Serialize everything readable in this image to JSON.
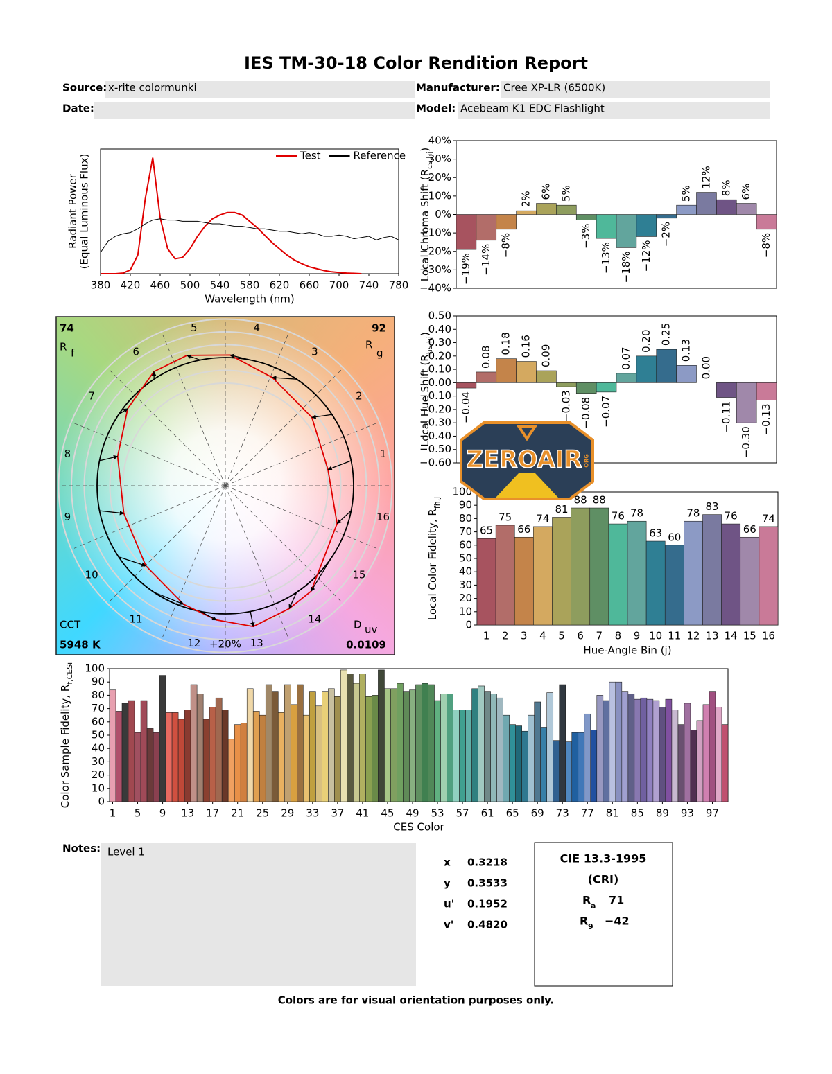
{
  "header": {
    "title": "IES TM-30-18 Color Rendition Report",
    "fields": [
      {
        "label": "Source:",
        "value": "x-rite colormunki"
      },
      {
        "label": "Manufacturer:",
        "value": "Cree XP-LR (6500K)"
      },
      {
        "label": "Date:"
      },
      {
        "label": "Model:",
        "value": "Acebeam K1 EDC Flashlight"
      }
    ]
  },
  "chart_data": [
    {
      "type": "line",
      "xlabel": "Wavelength (nm)",
      "ylabel": "Radiant Power",
      "ylabel_note": "(Equal Luminous Flux)",
      "x": [
        380,
        390,
        400,
        410,
        420,
        430,
        440,
        450,
        460,
        470,
        480,
        490,
        500,
        510,
        520,
        530,
        540,
        550,
        560,
        570,
        580,
        590,
        600,
        610,
        620,
        630,
        640,
        650,
        660,
        670,
        680,
        690,
        700,
        710,
        720,
        730,
        740,
        750,
        760,
        770,
        780
      ],
      "series": [
        {
          "name": "Test",
          "color": "#e00000",
          "values": [
            0,
            0,
            0,
            0.005,
            0.03,
            0.15,
            0.6,
            0.93,
            0.45,
            0.2,
            0.12,
            0.13,
            0.2,
            0.3,
            0.38,
            0.44,
            0.47,
            0.49,
            0.49,
            0.47,
            0.42,
            0.37,
            0.31,
            0.25,
            0.2,
            0.15,
            0.11,
            0.08,
            0.055,
            0.04,
            0.025,
            0.015,
            0.01,
            0.005,
            0.003,
            0,
            null,
            null,
            null,
            null,
            null
          ]
        },
        {
          "name": "Reference",
          "color": "#000000",
          "values": [
            0.17,
            0.26,
            0.3,
            0.32,
            0.33,
            0.36,
            0.4,
            0.43,
            0.44,
            0.43,
            0.43,
            0.42,
            0.42,
            0.42,
            0.41,
            0.4,
            0.4,
            0.39,
            0.38,
            0.38,
            0.37,
            0.36,
            0.36,
            0.35,
            0.34,
            0.34,
            0.33,
            0.32,
            0.33,
            0.32,
            0.3,
            0.3,
            0.31,
            0.3,
            0.28,
            0.29,
            0.3,
            0.27,
            0.29,
            0.3,
            0.27
          ]
        }
      ],
      "xlim": [
        380,
        780
      ],
      "xticks": [
        380,
        420,
        460,
        500,
        540,
        580,
        620,
        660,
        700,
        740,
        780
      ],
      "ylim": [
        0,
        1
      ],
      "legend": "upper right"
    },
    {
      "type": "vector",
      "rf": {
        "value": 74,
        "symbol": "R",
        "sub": "f"
      },
      "rg": {
        "value": 92,
        "symbol": "R",
        "sub": "g"
      },
      "cct": {
        "label": "CCT",
        "value": "5948 K"
      },
      "duv": {
        "symbol": "D",
        "sub": "uv",
        "value": 0.0109
      },
      "bins": [
        1,
        2,
        3,
        4,
        5,
        6,
        7,
        8,
        9,
        10,
        11,
        12,
        13,
        14,
        15,
        16
      ],
      "scale_label": "+20%"
    },
    {
      "type": "bar",
      "ylabel": "Local Chroma Shift (R",
      "ylabel_sub": "cs,hj",
      "ylabel_end": ")",
      "values": [
        -19,
        -14,
        -8,
        2,
        6,
        5,
        -3,
        -13,
        -18,
        -12,
        -2,
        5,
        12,
        8,
        6,
        -8
      ],
      "value_labels": [
        "−19%",
        "−14%",
        "−8%",
        "2%",
        "6%",
        "5%",
        "−3%",
        "−13%",
        "−18%",
        "−12%",
        "−2%",
        "5%",
        "12%",
        "8%",
        "6%",
        "−8%"
      ],
      "colors": [
        "#a7535f",
        "#b26d69",
        "#c4844a",
        "#d4a960",
        "#aaa35a",
        "#8e9d5e",
        "#5f8f64",
        "#4fb89a",
        "#62a59d",
        "#2f7f94",
        "#356c8d",
        "#8c9ac5",
        "#7a7aa0",
        "#6f5485",
        "#a088aa",
        "#c97a98"
      ],
      "ylim": [
        -40,
        40
      ],
      "yticks": [
        {
          "value": 40,
          "label": "40%"
        },
        {
          "value": 30,
          "label": "30%"
        },
        {
          "value": 20,
          "label": "20%"
        },
        {
          "value": 10,
          "label": "10%"
        },
        {
          "value": 0,
          "label": "0%"
        },
        {
          "value": -10,
          "label": "−10%"
        },
        {
          "value": -20,
          "label": "−20%"
        },
        {
          "value": -30,
          "label": "−30%"
        },
        {
          "value": -40,
          "label": "−40%"
        }
      ]
    },
    {
      "type": "bar",
      "ylabel": "Local Hue Shift (R",
      "ylabel_sub": "hs,hj",
      "ylabel_end": ")",
      "values": [
        -0.04,
        0.08,
        0.18,
        0.16,
        0.09,
        -0.03,
        -0.08,
        -0.07,
        0.07,
        0.2,
        0.25,
        0.13,
        0,
        -0.11,
        -0.3,
        -0.13
      ],
      "value_labels": [
        "−0.04",
        "0.08",
        "0.18",
        "0.16",
        "0.09",
        "−0.03",
        "−0.08",
        "−0.07",
        "0.07",
        "0.20",
        "0.25",
        "0.13",
        "0.00",
        "−0.11",
        "−0.30",
        "−0.13"
      ],
      "colors": [
        "#a7535f",
        "#b26d69",
        "#c4844a",
        "#d4a960",
        "#aaa35a",
        "#8e9d5e",
        "#5f8f64",
        "#4fb89a",
        "#62a59d",
        "#2f7f94",
        "#356c8d",
        "#8c9ac5",
        "#7a7aa0",
        "#6f5485",
        "#a088aa",
        "#c97a98"
      ],
      "ylim": [
        -0.6,
        0.5
      ],
      "yticks": [
        {
          "value": 0.5,
          "label": "0.50"
        },
        {
          "value": 0.4,
          "label": "0.40"
        },
        {
          "value": 0.3,
          "label": "0.30"
        },
        {
          "value": 0.2,
          "label": "0.20"
        },
        {
          "value": 0.1,
          "label": "0.10"
        },
        {
          "value": 0,
          "label": "0.00"
        },
        {
          "value": -0.1,
          "label": "−0.10"
        },
        {
          "value": -0.2,
          "label": "−0.20"
        },
        {
          "value": -0.3,
          "label": "−0.30"
        },
        {
          "value": -0.4,
          "label": "−0.40"
        },
        {
          "value": -0.5,
          "label": "−0.50"
        },
        {
          "value": -0.6,
          "label": "−0.60"
        }
      ]
    },
    {
      "type": "bar",
      "xlabel": "Hue-Angle Bin (j)",
      "ylabel": "Local Color Fidelity, R",
      "ylabel_sub": "fh,j",
      "categories": [
        1,
        2,
        3,
        4,
        5,
        6,
        7,
        8,
        9,
        10,
        11,
        12,
        13,
        14,
        15,
        16
      ],
      "values": [
        65,
        75,
        66,
        74,
        81,
        88,
        88,
        76,
        78,
        63,
        60,
        78,
        83,
        76,
        66,
        74
      ],
      "colors": [
        "#a7535f",
        "#b26d69",
        "#c4844a",
        "#d4a960",
        "#aaa35a",
        "#8e9d5e",
        "#5f8f64",
        "#4fb89a",
        "#62a59d",
        "#2f7f94",
        "#356c8d",
        "#8c9ac5",
        "#7a7aa0",
        "#6f5485",
        "#a088aa",
        "#c97a98"
      ],
      "ylim": [
        0,
        100
      ],
      "yticks": [
        0,
        10,
        20,
        30,
        40,
        50,
        60,
        70,
        80,
        90,
        100
      ]
    },
    {
      "type": "bar",
      "xlabel": "CES Color",
      "ylabel": "Color Sample Fidelity, R",
      "ylabel_sub": "f,CESi",
      "x": [
        1,
        2,
        3,
        4,
        5,
        6,
        7,
        8,
        9,
        10,
        11,
        12,
        13,
        14,
        15,
        16,
        17,
        18,
        19,
        20,
        21,
        22,
        23,
        24,
        25,
        26,
        27,
        28,
        29,
        30,
        31,
        32,
        33,
        34,
        35,
        36,
        37,
        38,
        39,
        40,
        41,
        42,
        43,
        44,
        45,
        46,
        47,
        48,
        49,
        50,
        51,
        52,
        53,
        54,
        55,
        56,
        57,
        58,
        59,
        60,
        61,
        62,
        63,
        64,
        65,
        66,
        67,
        68,
        69,
        70,
        71,
        72,
        73,
        74,
        75,
        76,
        77,
        78,
        79,
        80,
        81,
        82,
        83,
        84,
        85,
        86,
        87,
        88,
        89,
        90,
        91,
        92,
        93,
        94,
        95,
        96,
        97,
        98,
        99
      ],
      "values": [
        84,
        68,
        74,
        76,
        52,
        76,
        55,
        52,
        95,
        67,
        67,
        62,
        69,
        88,
        81,
        62,
        71,
        78,
        69,
        47,
        58,
        59,
        85,
        68,
        65,
        88,
        83,
        67,
        88,
        73,
        88,
        65,
        83,
        72,
        83,
        85,
        79,
        99,
        96,
        89,
        96,
        79,
        80,
        99,
        85,
        85,
        89,
        83,
        84,
        88,
        89,
        88,
        76,
        81,
        81,
        69,
        69,
        69,
        85,
        87,
        83,
        81,
        78,
        65,
        58,
        57,
        53,
        65,
        75,
        56,
        82,
        46,
        88,
        45,
        52,
        52,
        66,
        54,
        80,
        76,
        90,
        90,
        83,
        81,
        77,
        78,
        77,
        76,
        71,
        77,
        69,
        58,
        74,
        54,
        61,
        73,
        83,
        71,
        58
      ],
      "colors": [
        "#e8a0b0",
        "#b0506a",
        "#3a3a3a",
        "#a04850",
        "#a05060",
        "#a04a58",
        "#6a3a3a",
        "#8a4050",
        "#3a3a3a",
        "#e86a60",
        "#d05040",
        "#c04838",
        "#8a3a30",
        "#c09088",
        "#a08070",
        "#8a4030",
        "#b86048",
        "#a06850",
        "#6a3828",
        "#f0a060",
        "#e89048",
        "#d08040",
        "#f0d8a8",
        "#e0a050",
        "#c08040",
        "#a08868",
        "#7a5a38",
        "#e8b060",
        "#c0a070",
        "#d8a040",
        "#9a7040",
        "#e8c070",
        "#c0a040",
        "#d8c080",
        "#e8d078",
        "#c8c0a0",
        "#a09050",
        "#e8e0b0",
        "#5a5a40",
        "#c8c890",
        "#b0b060",
        "#8aa050",
        "#6a8a48",
        "#404838",
        "#a8c888",
        "#80a060",
        "#70a060",
        "#608a58",
        "#88b080",
        "#609060",
        "#408050",
        "#508858",
        "#60b080",
        "#a0d0b0",
        "#50a080",
        "#90d0c0",
        "#40a090",
        "#60b0a8",
        "#308080",
        "#a0c8c0",
        "#708888",
        "#90b8b8",
        "#a0b8c0",
        "#70a8b0",
        "#309098",
        "#206878",
        "#307890",
        "#a0c0d0",
        "#507890",
        "#3880a8",
        "#b0c8d8",
        "#306090",
        "#303840",
        "#5088c0",
        "#2060a0",
        "#4078b8",
        "#8098c8",
        "#2050a0",
        "#9898c0",
        "#6070a0",
        "#b8c0e0",
        "#8890c0",
        "#a0a0d0",
        "#606088",
        "#8878b0",
        "#7060a0",
        "#9080c0",
        "#b0a0d0",
        "#605080",
        "#8050a0",
        "#c8b8d0",
        "#6a5070",
        "#a070a0",
        "#503050",
        "#d0a0c0",
        "#d080b0",
        "#a05080",
        "#e0a8c8",
        "#c05070"
      ],
      "xlim": [
        0.5,
        99.5
      ],
      "xticks": [
        1,
        5,
        9,
        13,
        17,
        21,
        25,
        29,
        33,
        37,
        41,
        45,
        49,
        53,
        57,
        61,
        65,
        69,
        73,
        77,
        81,
        85,
        89,
        93,
        97
      ],
      "ylim": [
        0,
        100
      ],
      "yticks": [
        0,
        10,
        20,
        30,
        40,
        50,
        60,
        70,
        80,
        90,
        100
      ]
    }
  ],
  "chromaticity": [
    {
      "label": "x",
      "value": "0.3218"
    },
    {
      "label": "y",
      "value": "0.3533"
    },
    {
      "label": "u'",
      "value": "0.1952"
    },
    {
      "label": "v'",
      "value": "0.4820"
    }
  ],
  "cri": {
    "title": "CIE 13.3-1995",
    "subtitle": "(CRI)",
    "ra": {
      "symbol": "R",
      "sub": "a",
      "value": "71"
    },
    "r9": {
      "symbol": "R",
      "sub": "9",
      "value": "−42"
    }
  },
  "notes": {
    "label": "Notes:",
    "text": "Level 1"
  },
  "footer": "Colors are for visual orientation purposes only.",
  "watermark": {
    "text": "ZEROAIR",
    "sub": "ORG"
  }
}
